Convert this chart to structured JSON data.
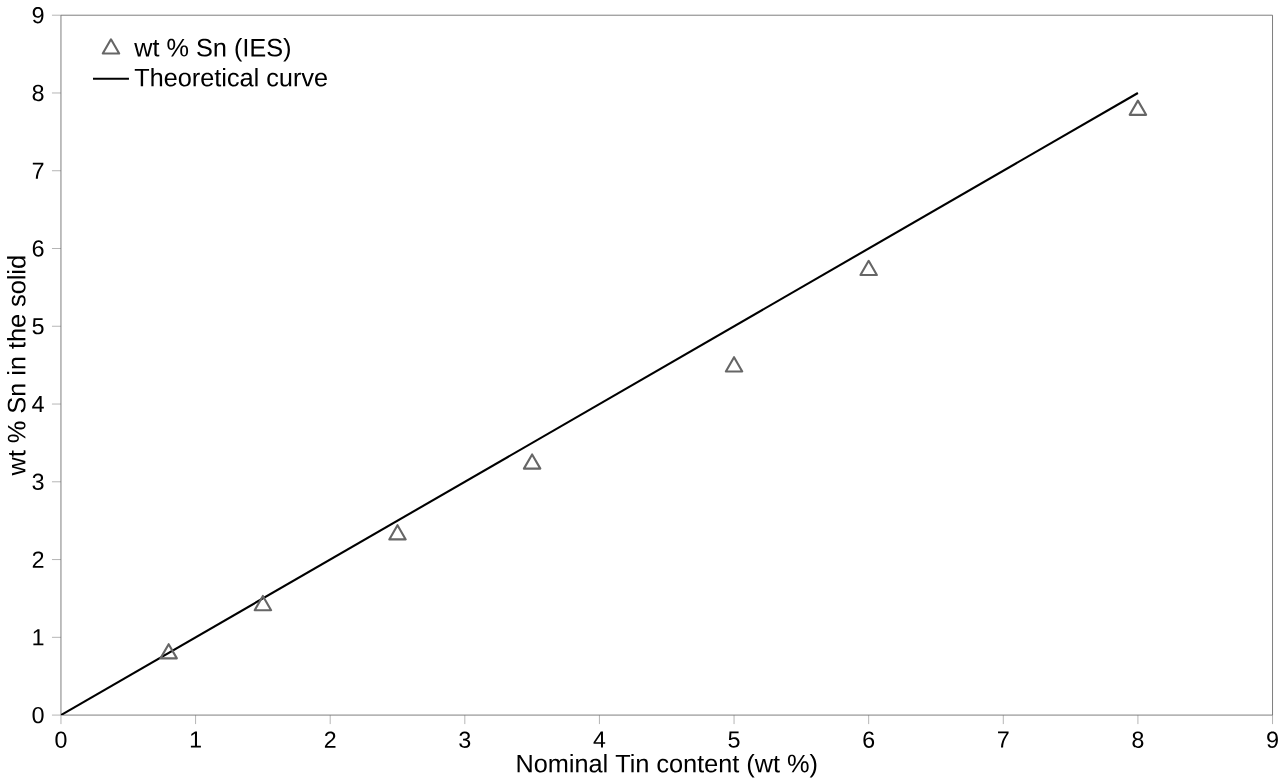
{
  "chart_data": {
    "type": "scatter",
    "xlabel": "Nominal Tin content (wt %)",
    "ylabel": "wt % Sn in the solid",
    "series": [
      {
        "name": "wt % Sn (IES)",
        "color": "#666666",
        "marker": "triangle",
        "x": [
          0.8,
          1.5,
          2.5,
          3.5,
          5,
          6,
          8
        ],
        "values": [
          0.79,
          1.41,
          2.32,
          3.23,
          4.48,
          5.72,
          7.78
        ]
      },
      {
        "name": "Theoretical curve",
        "type": "line",
        "color": "#000000",
        "marker": "none",
        "line_style": "solid",
        "x": [
          0,
          8
        ],
        "values": [
          0,
          8
        ]
      }
    ],
    "xlim": [
      0,
      9
    ],
    "ylim": [
      0,
      9
    ],
    "xticks": [
      0,
      1,
      2,
      3,
      4,
      5,
      6,
      7,
      8,
      9
    ],
    "yticks": [
      0,
      1,
      2,
      3,
      4,
      5,
      6,
      7,
      8,
      9
    ],
    "legend": "top left",
    "grid": false
  }
}
